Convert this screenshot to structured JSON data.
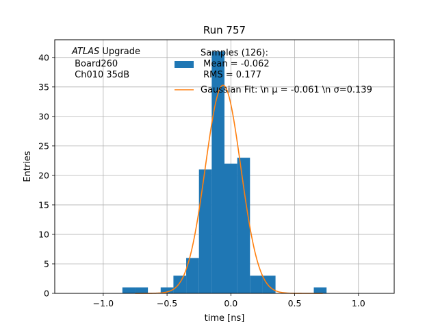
{
  "chart_data": {
    "type": "bar",
    "title": "Run 757",
    "xlabel": "time [ns]",
    "ylabel": "Entries",
    "xlim": [
      -1.38,
      1.28
    ],
    "ylim": [
      0,
      43
    ],
    "xticks": [
      -1.0,
      -0.5,
      0.0,
      0.5,
      1.0
    ],
    "xtick_labels": [
      "−1.0",
      "−0.5",
      "0.0",
      "0.5",
      "1.0"
    ],
    "yticks": [
      0,
      5,
      10,
      15,
      20,
      25,
      30,
      35,
      40
    ],
    "ytick_labels": [
      "0",
      "5",
      "10",
      "15",
      "20",
      "25",
      "30",
      "35",
      "40"
    ],
    "grid": true,
    "bin_edges": [
      -0.85,
      -0.75,
      -0.65,
      -0.55,
      -0.45,
      -0.35,
      -0.25,
      -0.15,
      -0.05,
      0.05,
      0.15,
      0.25,
      0.35,
      0.45,
      0.55,
      0.65,
      0.75
    ],
    "counts": [
      1,
      1,
      0,
      1,
      3,
      6,
      21,
      41,
      22,
      23,
      3,
      3,
      0,
      0,
      0,
      1
    ],
    "bar_color": "#1f77b4",
    "fit": {
      "type": "gaussian",
      "mu": -0.061,
      "sigma": 0.139,
      "amplitude": 35.3,
      "x_range": [
        -0.75,
        0.72
      ],
      "color": "#ff7f0e"
    },
    "legend": {
      "placement": "top-right",
      "entries": [
        {
          "label_lines": [
            "Samples (126):",
            " Mean = -0.062",
            " RMS = 0.177"
          ],
          "kind": "patch",
          "color": "#1f77b4"
        },
        {
          "label_lines": [
            "Gaussian Fit: \\n μ = -0.061 \\n σ=0.139"
          ],
          "kind": "line",
          "color": "#ff7f0e"
        }
      ]
    },
    "annotation": {
      "italic": "ATLAS",
      "rest": " Upgrade",
      "line2": " Board260",
      "line3": " Ch010 35dB"
    }
  }
}
